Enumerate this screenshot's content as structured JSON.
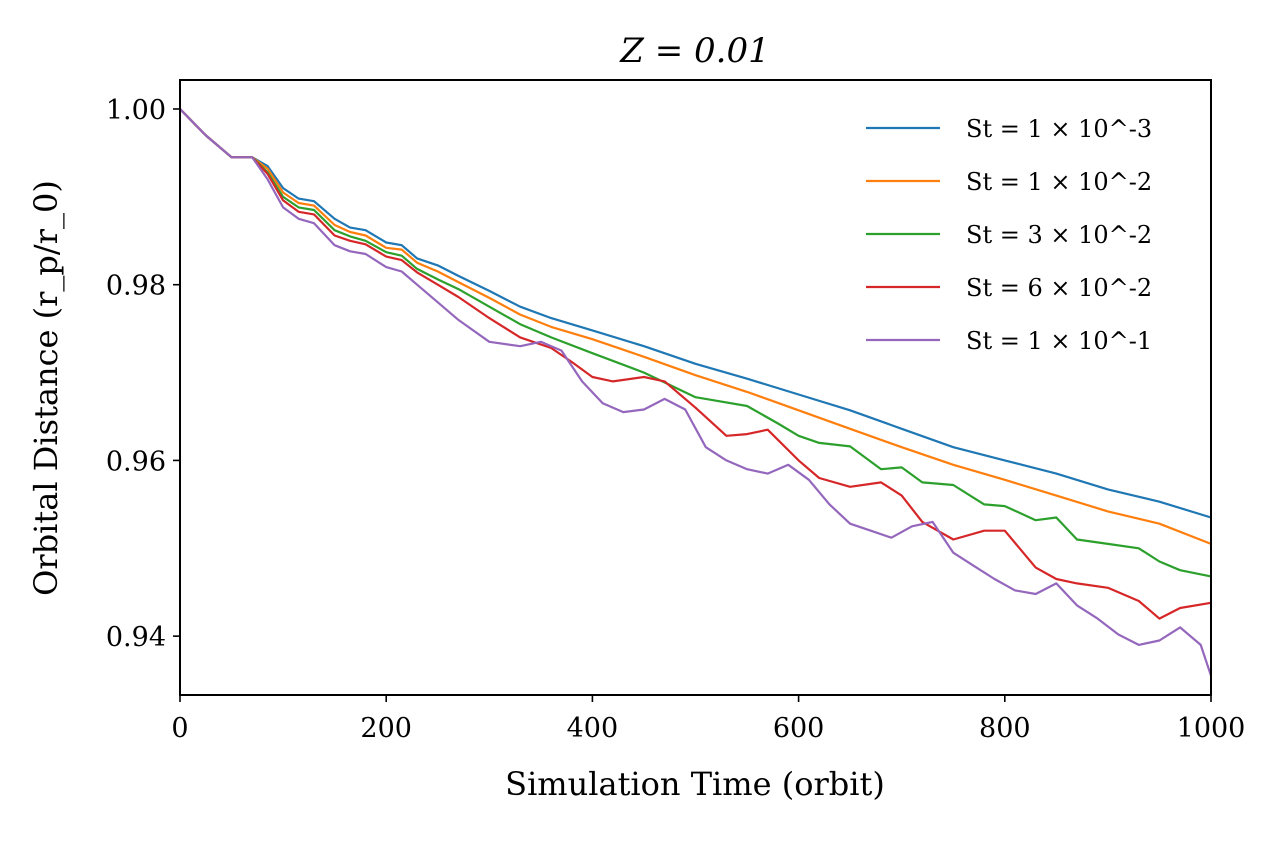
{
  "chart_data": {
    "type": "line",
    "title": "Z = 0.01",
    "xlabel": "Simulation Time (orbit)",
    "ylabel": "Orbital Distance (r_p/r_0)",
    "xlim": [
      0,
      1000
    ],
    "ylim": [
      0.9333,
      1.0033
    ],
    "xticks": [
      0,
      200,
      400,
      600,
      800,
      1000
    ],
    "xtick_labels": [
      "0",
      "200",
      "400",
      "600",
      "800",
      "1000"
    ],
    "yticks": [
      0.94,
      0.96,
      0.98,
      1.0
    ],
    "ytick_labels": [
      "0.94",
      "0.96",
      "0.98",
      "1.00"
    ],
    "grid": false,
    "legend_position": "top-right",
    "series": [
      {
        "name": "St = 1 × 10^-3",
        "color": "#1f77b4",
        "x": [
          0,
          25,
          50,
          70,
          85,
          100,
          115,
          130,
          150,
          165,
          180,
          200,
          215,
          230,
          250,
          270,
          300,
          330,
          360,
          400,
          450,
          500,
          550,
          600,
          650,
          700,
          750,
          800,
          850,
          900,
          950,
          1000
        ],
        "y": [
          1.0,
          0.997,
          0.9945,
          0.9945,
          0.9935,
          0.991,
          0.9898,
          0.9895,
          0.9875,
          0.9865,
          0.9862,
          0.9848,
          0.9845,
          0.983,
          0.9822,
          0.981,
          0.9793,
          0.9775,
          0.9762,
          0.9748,
          0.973,
          0.971,
          0.9693,
          0.9675,
          0.9657,
          0.9636,
          0.9615,
          0.96,
          0.9585,
          0.9567,
          0.9553,
          0.9535
        ]
      },
      {
        "name": "St = 1 × 10^-2",
        "color": "#ff7f0e",
        "x": [
          0,
          25,
          50,
          70,
          85,
          100,
          115,
          130,
          150,
          165,
          180,
          200,
          215,
          230,
          250,
          270,
          300,
          330,
          360,
          400,
          450,
          500,
          550,
          600,
          650,
          700,
          750,
          800,
          850,
          900,
          950,
          1000
        ],
        "y": [
          1.0,
          0.997,
          0.9945,
          0.9945,
          0.9932,
          0.9905,
          0.9893,
          0.989,
          0.9868,
          0.986,
          0.9856,
          0.9842,
          0.984,
          0.9825,
          0.9815,
          0.9803,
          0.9785,
          0.9766,
          0.9752,
          0.9738,
          0.9718,
          0.9697,
          0.9678,
          0.9657,
          0.9636,
          0.9615,
          0.9595,
          0.9578,
          0.956,
          0.9542,
          0.9528,
          0.9505
        ]
      },
      {
        "name": "St = 3 × 10^-2",
        "color": "#2ca02c",
        "x": [
          0,
          25,
          50,
          70,
          85,
          100,
          115,
          130,
          150,
          165,
          180,
          200,
          215,
          230,
          250,
          270,
          300,
          330,
          360,
          400,
          450,
          500,
          520,
          550,
          580,
          600,
          620,
          650,
          680,
          700,
          720,
          750,
          780,
          800,
          830,
          850,
          870,
          900,
          930,
          950,
          970,
          1000
        ],
        "y": [
          1.0,
          0.997,
          0.9945,
          0.9945,
          0.9928,
          0.99,
          0.9888,
          0.9885,
          0.9862,
          0.9855,
          0.985,
          0.9837,
          0.9833,
          0.9818,
          0.9806,
          0.9795,
          0.9775,
          0.9755,
          0.974,
          0.9722,
          0.97,
          0.9672,
          0.9668,
          0.9662,
          0.9642,
          0.9628,
          0.962,
          0.9616,
          0.959,
          0.9592,
          0.9575,
          0.9572,
          0.955,
          0.9548,
          0.9532,
          0.9535,
          0.951,
          0.9505,
          0.95,
          0.9485,
          0.9475,
          0.9468
        ]
      },
      {
        "name": "St = 6 × 10^-2",
        "color": "#d62728",
        "x": [
          0,
          25,
          50,
          70,
          85,
          100,
          115,
          130,
          150,
          165,
          180,
          200,
          215,
          230,
          250,
          270,
          300,
          330,
          360,
          380,
          400,
          420,
          450,
          470,
          500,
          530,
          550,
          570,
          600,
          620,
          650,
          680,
          700,
          720,
          750,
          780,
          800,
          830,
          850,
          870,
          900,
          930,
          950,
          970,
          1000
        ],
        "y": [
          1.0,
          0.997,
          0.9945,
          0.9945,
          0.9926,
          0.9896,
          0.9883,
          0.988,
          0.9856,
          0.985,
          0.9846,
          0.9832,
          0.9828,
          0.9814,
          0.98,
          0.9786,
          0.9762,
          0.974,
          0.9728,
          0.9712,
          0.9695,
          0.969,
          0.9695,
          0.969,
          0.966,
          0.9628,
          0.963,
          0.9635,
          0.96,
          0.958,
          0.957,
          0.9575,
          0.956,
          0.953,
          0.951,
          0.952,
          0.952,
          0.9478,
          0.9465,
          0.946,
          0.9455,
          0.944,
          0.942,
          0.9432,
          0.9438
        ]
      },
      {
        "name": "St = 1 × 10^-1",
        "color": "#9467bd",
        "x": [
          0,
          25,
          50,
          70,
          85,
          100,
          115,
          130,
          150,
          165,
          180,
          200,
          215,
          230,
          250,
          270,
          300,
          330,
          350,
          370,
          390,
          410,
          430,
          450,
          470,
          490,
          510,
          530,
          550,
          570,
          590,
          610,
          630,
          650,
          670,
          690,
          710,
          730,
          750,
          770,
          790,
          810,
          830,
          850,
          870,
          890,
          910,
          930,
          950,
          970,
          990,
          1000
        ],
        "y": [
          1.0,
          0.997,
          0.9945,
          0.9945,
          0.992,
          0.9888,
          0.9875,
          0.987,
          0.9845,
          0.9838,
          0.9835,
          0.982,
          0.9815,
          0.98,
          0.978,
          0.976,
          0.9735,
          0.973,
          0.9735,
          0.9725,
          0.969,
          0.9665,
          0.9655,
          0.9658,
          0.967,
          0.9658,
          0.9615,
          0.96,
          0.959,
          0.9585,
          0.9595,
          0.9578,
          0.955,
          0.9528,
          0.952,
          0.9512,
          0.9525,
          0.953,
          0.9495,
          0.948,
          0.9465,
          0.9452,
          0.9448,
          0.946,
          0.9435,
          0.942,
          0.9402,
          0.939,
          0.9395,
          0.941,
          0.939,
          0.9355
        ]
      }
    ]
  }
}
